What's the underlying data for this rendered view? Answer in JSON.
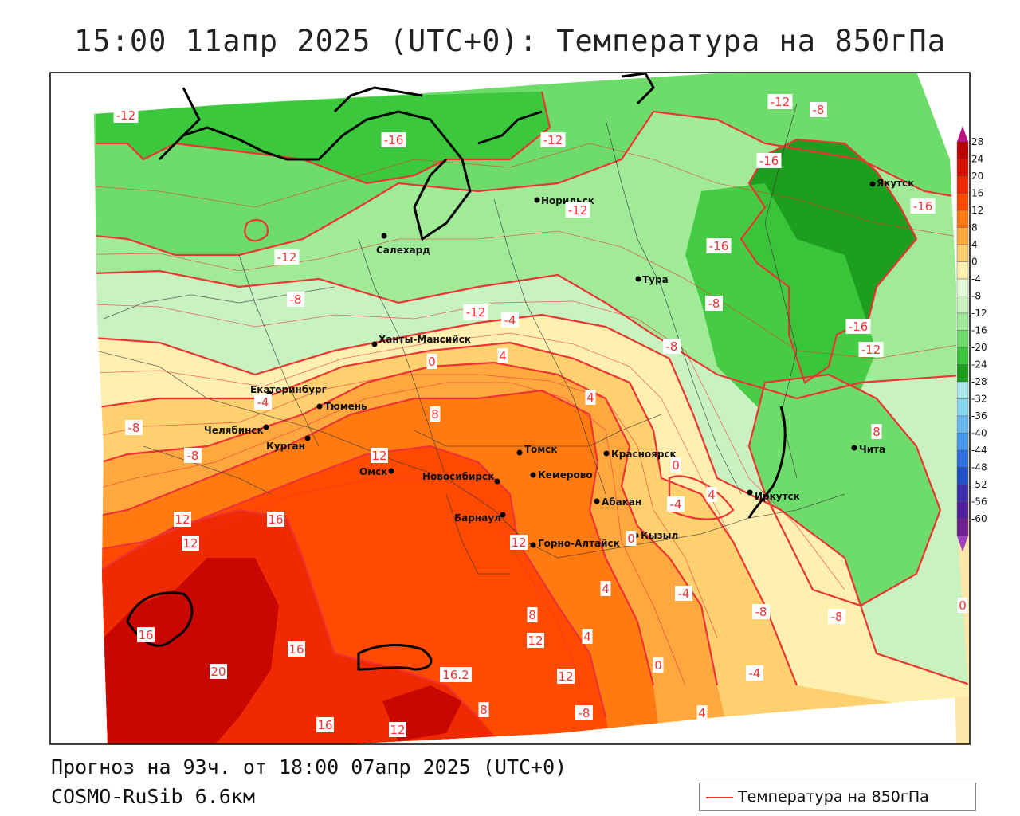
{
  "title": "15:00 11апр 2025 (UTC+0): Температура на 850гПа",
  "forecast_line": "Прогноз на 93ч. от 18:00 07апр 2025 (UTC+0)",
  "model_line": "COSMO-RuSib 6.6км",
  "legend": {
    "label": "Температура на 850гПа",
    "line_color": "#ee3333"
  },
  "colorbar": {
    "ticks": [
      "28",
      "24",
      "20",
      "16",
      "12",
      "8",
      "4",
      "0",
      "-4",
      "-8",
      "-12",
      "-16",
      "-20",
      "-24",
      "-28",
      "-32",
      "-36",
      "-40",
      "-44",
      "-48",
      "-52",
      "-56",
      "-60"
    ],
    "colors": [
      "#b80000",
      "#d81200",
      "#f02a00",
      "#ff4a00",
      "#ff7a10",
      "#ffa840",
      "#ffd070",
      "#fff0b0",
      "#e6fadc",
      "#c8f2c0",
      "#a0ea98",
      "#6edc6a",
      "#3cc83c",
      "#1e9e1e",
      "#a8e8e8",
      "#88d8f0",
      "#68b8f0",
      "#4898f0",
      "#3070e0",
      "#2050c8",
      "#3a30b0",
      "#5020a0",
      "#702090"
    ]
  },
  "cities": [
    {
      "name": "Норильск"
    },
    {
      "name": "Якутск"
    },
    {
      "name": "Салехард"
    },
    {
      "name": "Тура"
    },
    {
      "name": "Ханты-Мансийск"
    },
    {
      "name": "Екатеринбург"
    },
    {
      "name": "Тюмень"
    },
    {
      "name": "Челябинск"
    },
    {
      "name": "Курган"
    },
    {
      "name": "Томск"
    },
    {
      "name": "Красноярск"
    },
    {
      "name": "Омск"
    },
    {
      "name": "Новосибирск"
    },
    {
      "name": "Кемерово"
    },
    {
      "name": "Абакан"
    },
    {
      "name": "Барнаул"
    },
    {
      "name": "Горно-Алтайск"
    },
    {
      "name": "Кызыл"
    },
    {
      "name": "Иркутск"
    },
    {
      "name": "Чита"
    }
  ],
  "isotherm_labels": [
    "-12",
    "-16",
    "-12",
    "-12",
    "-16",
    "-8",
    "-16",
    "-12",
    "-16",
    "-12",
    "-8",
    "-12",
    "-8",
    "-4",
    "-8",
    "-16",
    "-12",
    "0",
    "4",
    "-4",
    "-8",
    "8",
    "4",
    "12",
    "8",
    "-8",
    "0",
    "4",
    "16",
    "12",
    "12",
    "-4",
    "0",
    "12",
    "4",
    "-4",
    "-8",
    "-8",
    "8",
    "16",
    "4",
    "12",
    "0",
    "16",
    "20",
    "12",
    "16.2",
    "-4",
    "-8",
    "16",
    "12",
    "4",
    "8",
    "0"
  ]
}
